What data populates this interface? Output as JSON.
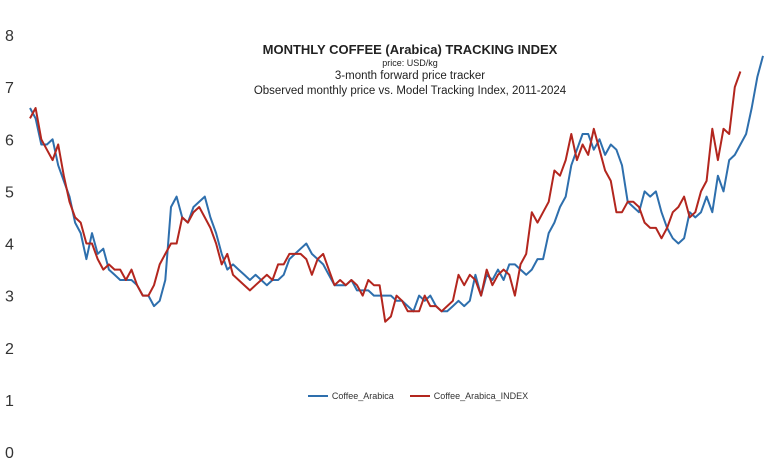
{
  "chart_data": {
    "type": "line",
    "title": "MONTHLY COFFEE (Arabica) TRACKING INDEX",
    "subtitle_units": "price: USD/kg",
    "subtitle_1": "3-month forward price tracker",
    "subtitle_2": "Observed monthly price vs. Model Tracking Index, 2011-2024",
    "ylim": [
      0,
      8
    ],
    "y_ticks": [
      "0",
      "1",
      "2",
      "3",
      "4",
      "5",
      "6",
      "7",
      "8"
    ],
    "grid": false,
    "legend_position": "bottom-center",
    "series": [
      {
        "name": "Coffee_Arabica",
        "color": "#2e6fad",
        "values": [
          6.6,
          6.4,
          5.9,
          5.9,
          6.0,
          5.5,
          5.2,
          4.9,
          4.4,
          4.2,
          3.7,
          4.2,
          3.8,
          3.9,
          3.5,
          3.4,
          3.3,
          3.3,
          3.3,
          3.2,
          3.0,
          3.0,
          2.8,
          2.9,
          3.3,
          4.7,
          4.9,
          4.5,
          4.4,
          4.7,
          4.8,
          4.9,
          4.5,
          4.2,
          3.8,
          3.5,
          3.6,
          3.5,
          3.4,
          3.3,
          3.4,
          3.3,
          3.2,
          3.3,
          3.3,
          3.4,
          3.7,
          3.8,
          3.9,
          4.0,
          3.8,
          3.7,
          3.6,
          3.4,
          3.2,
          3.2,
          3.2,
          3.3,
          3.1,
          3.1,
          3.1,
          3.0,
          3.0,
          3.0,
          3.0,
          2.9,
          2.9,
          2.8,
          2.7,
          3.0,
          2.9,
          3.0,
          2.8,
          2.7,
          2.7,
          2.8,
          2.9,
          2.8,
          2.9,
          3.4,
          3.0,
          3.4,
          3.3,
          3.5,
          3.3,
          3.6,
          3.6,
          3.5,
          3.4,
          3.5,
          3.7,
          3.7,
          4.2,
          4.4,
          4.7,
          4.9,
          5.5,
          5.8,
          6.1,
          6.1,
          5.8,
          6.0,
          5.7,
          5.9,
          5.8,
          5.5,
          4.8,
          4.7,
          4.6,
          5.0,
          4.9,
          5.0,
          4.6,
          4.3,
          4.1,
          4.0,
          4.1,
          4.6,
          4.5,
          4.6,
          4.9,
          4.6,
          5.3,
          5.0,
          5.6,
          5.7,
          5.9,
          6.1,
          6.6,
          7.2,
          7.6
        ],
        "x_start": 0
      },
      {
        "name": "Coffee_Arabica_INDEX",
        "color": "#b3261e",
        "values": [
          6.4,
          6.6,
          6.0,
          5.8,
          5.6,
          5.9,
          5.3,
          4.8,
          4.5,
          4.4,
          4.0,
          4.0,
          3.7,
          3.5,
          3.6,
          3.5,
          3.5,
          3.3,
          3.5,
          3.2,
          3.0,
          3.0,
          3.2,
          3.6,
          3.8,
          4.0,
          4.0,
          4.5,
          4.4,
          4.6,
          4.7,
          4.5,
          4.3,
          4.0,
          3.6,
          3.8,
          3.4,
          3.3,
          3.2,
          3.1,
          3.2,
          3.3,
          3.4,
          3.3,
          3.6,
          3.6,
          3.8,
          3.8,
          3.8,
          3.7,
          3.4,
          3.7,
          3.8,
          3.5,
          3.2,
          3.3,
          3.2,
          3.3,
          3.2,
          3.0,
          3.3,
          3.2,
          3.2,
          2.5,
          2.6,
          3.0,
          2.9,
          2.7,
          2.7,
          2.7,
          3.0,
          2.8,
          2.8,
          2.7,
          2.8,
          2.9,
          3.4,
          3.2,
          3.4,
          3.3,
          3.0,
          3.5,
          3.2,
          3.4,
          3.5,
          3.4,
          3.0,
          3.6,
          3.8,
          4.6,
          4.4,
          4.6,
          4.8,
          5.4,
          5.3,
          5.6,
          6.1,
          5.6,
          5.9,
          5.7,
          6.2,
          5.8,
          5.4,
          5.2,
          4.6,
          4.6,
          4.8,
          4.8,
          4.7,
          4.4,
          4.3,
          4.3,
          4.1,
          4.3,
          4.6,
          4.7,
          4.9,
          4.5,
          4.6,
          5.0,
          5.2,
          6.2,
          5.6,
          6.2,
          6.1,
          7.0,
          7.3
        ],
        "x_start": 0
      }
    ]
  }
}
